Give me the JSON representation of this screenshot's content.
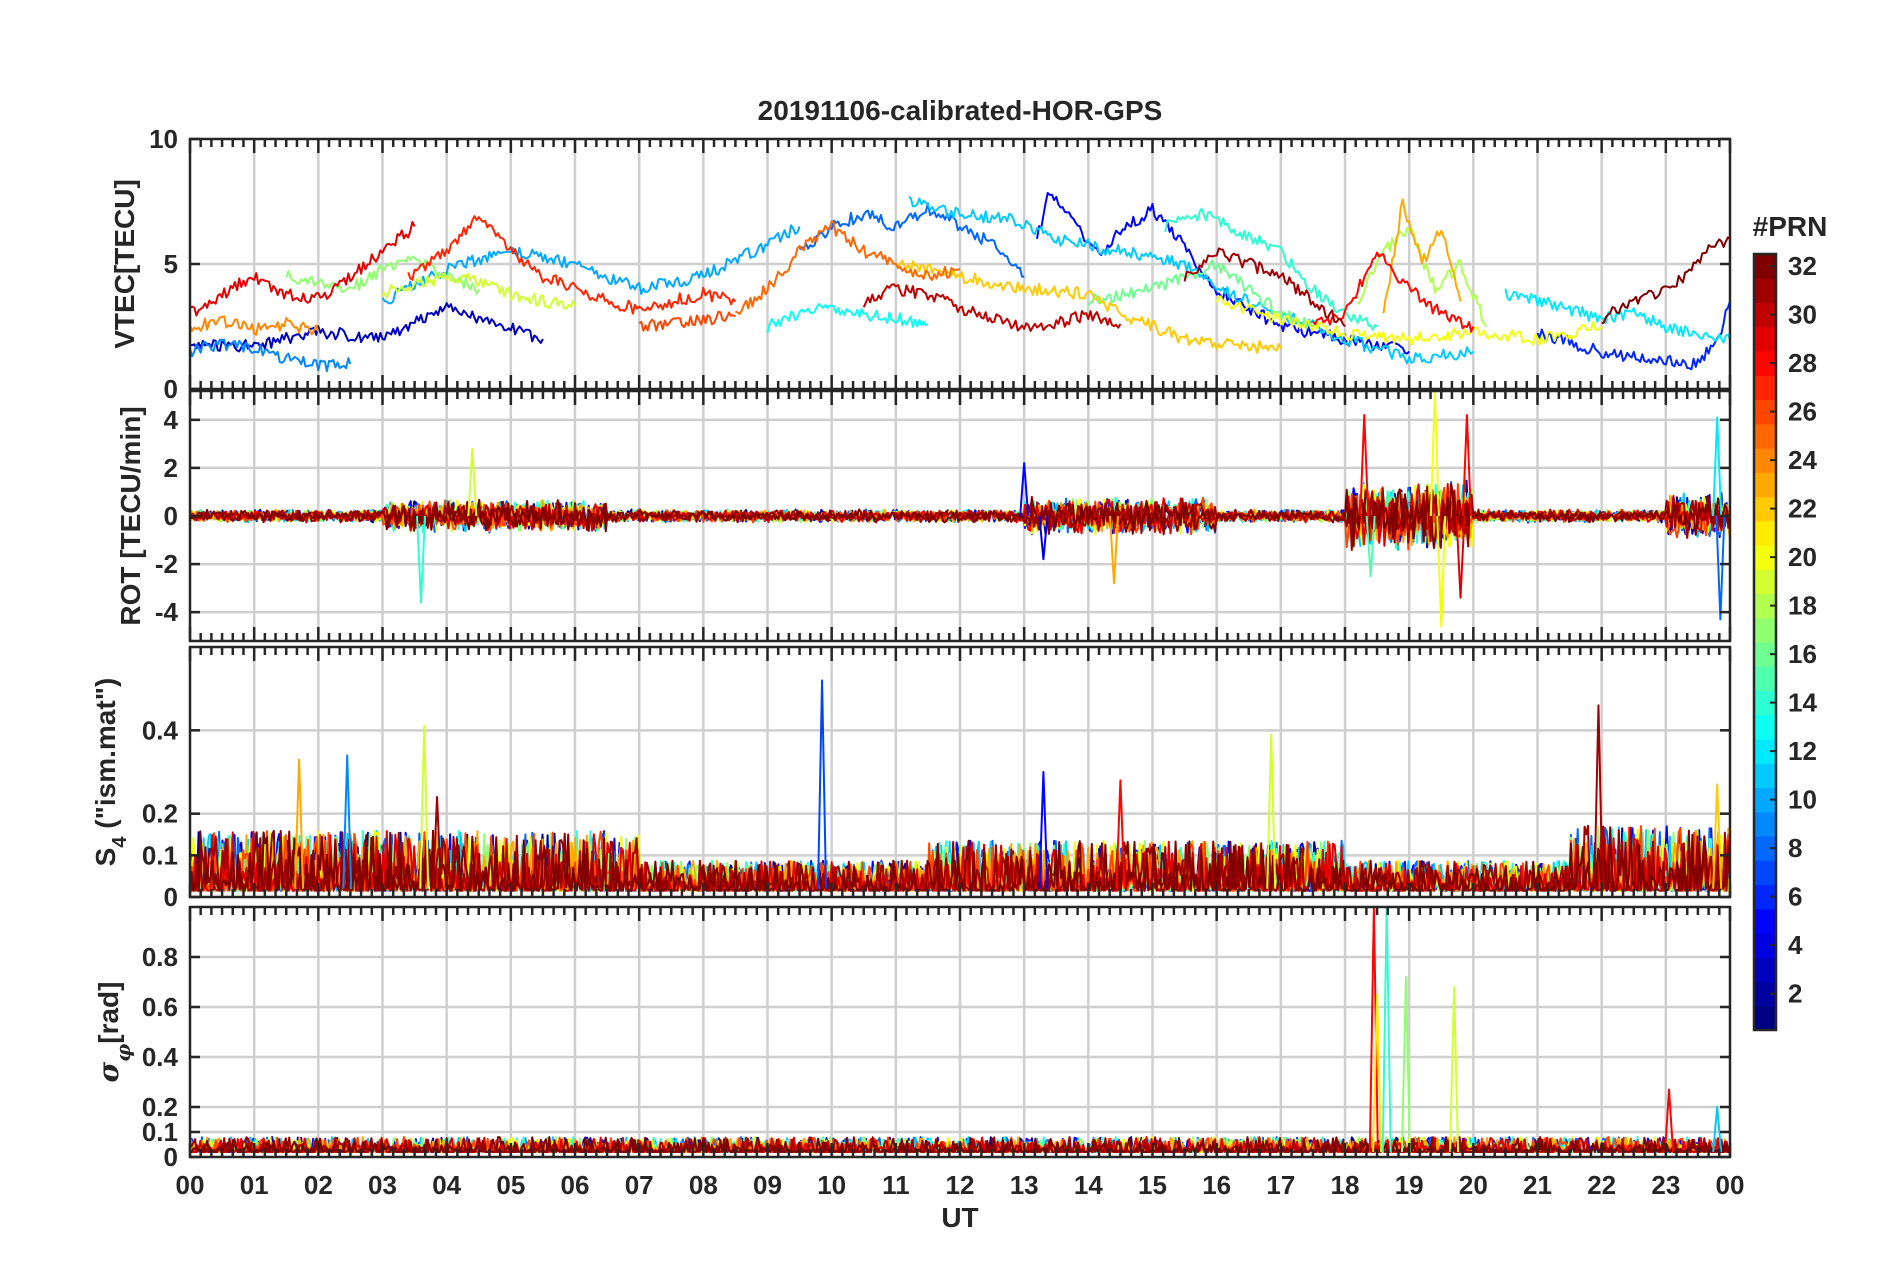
{
  "chart_data": {
    "type": "line",
    "title": "20191106-calibrated-HOR-GPS",
    "xlabel": "UT",
    "x_ticks": [
      "00",
      "01",
      "02",
      "03",
      "04",
      "05",
      "06",
      "07",
      "08",
      "09",
      "10",
      "11",
      "12",
      "13",
      "14",
      "15",
      "16",
      "17",
      "18",
      "19",
      "20",
      "21",
      "22",
      "23",
      "00"
    ],
    "xlim": [
      0,
      24
    ],
    "colorbar": {
      "label": "#PRN",
      "colormap": "jet",
      "range": [
        1,
        32
      ],
      "ticks": [
        "2",
        "4",
        "6",
        "8",
        "10",
        "12",
        "14",
        "16",
        "18",
        "20",
        "22",
        "24",
        "26",
        "28",
        "30",
        "32"
      ]
    },
    "panels": [
      {
        "id": "vtec",
        "ylabel": "VTEC[TECU]",
        "ylim": [
          0,
          10
        ],
        "y_ticks": [
          {
            "v": 0,
            "t": "0"
          },
          {
            "v": 5,
            "t": "5"
          },
          {
            "v": 10,
            "t": "10"
          }
        ],
        "series": [
          {
            "prn": 3,
            "x": [
              0,
              1,
              2,
              3,
              3.5,
              4,
              4.5,
              5,
              5.5
            ],
            "y": [
              1.8,
              1.7,
              2.3,
              2.0,
              2.6,
              3.4,
              2.8,
              2.4,
              2.0
            ]
          },
          {
            "prn": 5,
            "x": [
              13.2,
              13.4,
              13.8,
              14.2,
              14.6,
              15.0,
              15.4,
              16.0,
              17.0,
              18.0,
              19.0
            ],
            "y": [
              6.0,
              8.0,
              6.5,
              5.5,
              6.5,
              7.2,
              6.0,
              4.0,
              2.5,
              2.0,
              1.5
            ]
          },
          {
            "prn": 6,
            "x": [
              21,
              22,
              22.5,
              23,
              23.4,
              23.8,
              24
            ],
            "y": [
              2.2,
              1.5,
              1.3,
              1.2,
              1.0,
              1.8,
              3.5
            ]
          },
          {
            "prn": 8,
            "x": [
              9.5,
              10,
              10.5,
              11,
              11.5,
              12,
              12.5,
              13
            ],
            "y": [
              5.5,
              6.5,
              7.0,
              6.5,
              7.2,
              6.5,
              5.8,
              4.5
            ]
          },
          {
            "prn": 9,
            "x": [
              0,
              0.5,
              1,
              1.5,
              2,
              2.5
            ],
            "y": [
              1.5,
              1.8,
              1.6,
              1.2,
              0.9,
              1.0
            ]
          },
          {
            "prn": 10,
            "x": [
              3.0,
              4.0,
              5.0,
              6.0,
              7.0,
              8.0,
              9.0,
              9.5
            ],
            "y": [
              3.5,
              4.8,
              5.5,
              5.0,
              4.0,
              4.5,
              5.8,
              6.5
            ]
          },
          {
            "prn": 11,
            "x": [
              11.2,
              12,
              12.8,
              13.5,
              14.5,
              15.5,
              16,
              17,
              18,
              19,
              20
            ],
            "y": [
              7.5,
              7.0,
              6.8,
              6.0,
              5.5,
              5.0,
              4.0,
              3.0,
              2.0,
              1.2,
              1.5
            ]
          },
          {
            "prn": 12,
            "x": [
              20.5,
              21,
              21.5,
              22,
              22.5,
              23,
              23.5,
              24
            ],
            "y": [
              3.8,
              3.5,
              3.2,
              2.8,
              3.0,
              2.5,
              2.2,
              2.0
            ]
          },
          {
            "prn": 13,
            "x": [
              9,
              9.5,
              10,
              10.5,
              11,
              11.5
            ],
            "y": [
              2.5,
              3.0,
              3.3,
              3.0,
              2.8,
              2.6
            ]
          },
          {
            "prn": 14,
            "x": [
              15.2,
              15.8,
              16.4,
              17,
              17.5,
              18,
              18.5
            ],
            "y": [
              6.5,
              7.0,
              6.2,
              5.5,
              4.0,
              3.0,
              2.5
            ]
          },
          {
            "prn": 16,
            "x": [
              14,
              15,
              16,
              17,
              17.5
            ],
            "y": [
              3.5,
              4.0,
              5.0,
              3.0,
              2.5
            ]
          },
          {
            "prn": 17,
            "x": [
              1.5,
              2,
              2.5,
              3,
              3.5,
              4,
              4.5
            ],
            "y": [
              4.6,
              4.2,
              4.0,
              4.8,
              5.2,
              4.6,
              4.0
            ]
          },
          {
            "prn": 18,
            "x": [
              18.2,
              18.6,
              19,
              19.4,
              19.8,
              20.2
            ],
            "y": [
              3.5,
              5.5,
              6.5,
              4.0,
              5.0,
              2.5
            ]
          },
          {
            "prn": 19,
            "x": [
              3,
              3.5,
              4,
              4.5,
              5,
              5.5,
              6
            ],
            "y": [
              3.8,
              4.2,
              4.5,
              4.3,
              3.8,
              3.5,
              3.3
            ]
          },
          {
            "prn": 20,
            "x": [
              16,
              17,
              18,
              19,
              20,
              21,
              22
            ],
            "y": [
              3.5,
              2.8,
              2.2,
              2.0,
              2.3,
              2.0,
              2.5
            ]
          },
          {
            "prn": 22,
            "x": [
              11,
              12,
              13,
              14,
              14.5,
              15,
              15.5,
              16,
              17
            ],
            "y": [
              5.0,
              4.5,
              4.0,
              3.8,
              3.0,
              2.5,
              2.0,
              1.8,
              1.6
            ]
          },
          {
            "prn": 23,
            "x": [
              18.6,
              18.9,
              19.2,
              19.5,
              19.8
            ],
            "y": [
              3.0,
              7.5,
              5.0,
              6.5,
              3.5
            ]
          },
          {
            "prn": 24,
            "x": [
              0,
              0.5,
              1,
              1.5,
              2
            ],
            "y": [
              2.5,
              2.7,
              2.4,
              2.6,
              2.3
            ]
          },
          {
            "prn": 25,
            "x": [
              8.5,
              9,
              9.5,
              10,
              10.5,
              11,
              11.5,
              12
            ],
            "y": [
              3.0,
              4.0,
              5.5,
              6.5,
              5.5,
              5.0,
              4.5,
              4.8
            ]
          },
          {
            "prn": 26,
            "x": [
              7,
              7.5,
              8,
              8.5
            ],
            "y": [
              2.5,
              2.6,
              2.8,
              2.9
            ]
          },
          {
            "prn": 27,
            "x": [
              3.4,
              4,
              4.5,
              5,
              5.5,
              6,
              6.5,
              7,
              7.5,
              8,
              8.5
            ],
            "y": [
              4.5,
              5.5,
              7.0,
              5.5,
              4.5,
              4.0,
              3.5,
              3.2,
              3.5,
              3.8,
              3.5
            ]
          },
          {
            "prn": 28,
            "x": [
              17.5,
              18,
              18.5,
              19,
              19.5,
              20
            ],
            "y": [
              2.5,
              3.0,
              5.5,
              4.0,
              3.0,
              2.5
            ]
          },
          {
            "prn": 29,
            "x": [
              0,
              0.5,
              1,
              1.5,
              2,
              2.5,
              3,
              3.5
            ],
            "y": [
              3.0,
              3.8,
              4.5,
              3.8,
              3.6,
              4.5,
              5.5,
              6.5
            ]
          },
          {
            "prn": 30,
            "x": [
              10.5,
              11,
              11.5,
              12,
              12.5,
              13,
              13.5,
              14,
              14.5
            ],
            "y": [
              3.5,
              4.0,
              3.8,
              3.2,
              2.8,
              2.4,
              2.6,
              3.0,
              2.6
            ]
          },
          {
            "prn": 31,
            "x": [
              15.5,
              16,
              16.5,
              17,
              17.5,
              18
            ],
            "y": [
              4.5,
              5.5,
              5.0,
              4.5,
              3.5,
              2.5
            ]
          },
          {
            "prn": 32,
            "x": [
              22,
              22.5,
              23,
              23.3,
              23.6,
              24
            ],
            "y": [
              2.8,
              3.5,
              4.0,
              4.5,
              5.5,
              6.0
            ]
          }
        ]
      },
      {
        "id": "rot",
        "ylabel": "ROT [TECU/min]",
        "ylim": [
          -5.2,
          5.2
        ],
        "y_ticks": [
          {
            "v": -4,
            "t": "-4"
          },
          {
            "v": -2,
            "t": "-2"
          },
          {
            "v": 0,
            "t": "0"
          },
          {
            "v": 2,
            "t": "2"
          },
          {
            "v": 4,
            "t": "4"
          }
        ],
        "spikes": [
          {
            "prn": 14,
            "x": 3.6,
            "y": -3.6
          },
          {
            "prn": 19,
            "x": 4.4,
            "y": 2.8
          },
          {
            "prn": 5,
            "x": 13.0,
            "y": 2.2
          },
          {
            "prn": 4,
            "x": 13.3,
            "y": -1.8
          },
          {
            "prn": 23,
            "x": 14.4,
            "y": -2.8
          },
          {
            "prn": 28,
            "x": 18.3,
            "y": 4.2
          },
          {
            "prn": 15,
            "x": 18.4,
            "y": -2.5
          },
          {
            "prn": 20,
            "x": 19.4,
            "y": 5.2
          },
          {
            "prn": 20,
            "x": 19.5,
            "y": -4.6
          },
          {
            "prn": 28,
            "x": 19.9,
            "y": 4.2
          },
          {
            "prn": 29,
            "x": 19.8,
            "y": -3.4
          },
          {
            "prn": 12,
            "x": 23.8,
            "y": 4.1
          },
          {
            "prn": 8,
            "x": 23.85,
            "y": -4.3
          }
        ]
      },
      {
        "id": "s4",
        "ylabel": "S4 (\"ism.mat\")",
        "ylim": [
          0,
          0.6
        ],
        "y_ticks": [
          {
            "v": 0,
            "t": "0"
          },
          {
            "v": 0.1,
            "t": "0.1"
          },
          {
            "v": 0.2,
            "t": "0.2"
          },
          {
            "v": 0.4,
            "t": "0.4"
          }
        ],
        "spikes": [
          {
            "prn": 23,
            "x": 1.7,
            "y": 0.33
          },
          {
            "prn": 9,
            "x": 2.45,
            "y": 0.34
          },
          {
            "prn": 19,
            "x": 3.65,
            "y": 0.41
          },
          {
            "prn": 31,
            "x": 3.85,
            "y": 0.24
          },
          {
            "prn": 7,
            "x": 9.85,
            "y": 0.52
          },
          {
            "prn": 5,
            "x": 13.3,
            "y": 0.3
          },
          {
            "prn": 28,
            "x": 14.5,
            "y": 0.28
          },
          {
            "prn": 19,
            "x": 16.85,
            "y": 0.39
          },
          {
            "prn": 31,
            "x": 21.95,
            "y": 0.46
          },
          {
            "prn": 22,
            "x": 23.8,
            "y": 0.27
          }
        ]
      },
      {
        "id": "sigma",
        "ylabel": "σφ[rad]",
        "ylim": [
          0,
          1.0
        ],
        "y_ticks": [
          {
            "v": 0,
            "t": "0"
          },
          {
            "v": 0.1,
            "t": "0.1"
          },
          {
            "v": 0.2,
            "t": "0.2"
          },
          {
            "v": 0.4,
            "t": "0.4"
          },
          {
            "v": 0.6,
            "t": "0.6"
          },
          {
            "v": 0.8,
            "t": "0.8"
          }
        ],
        "spikes": [
          {
            "prn": 28,
            "x": 18.45,
            "y": 1.0
          },
          {
            "prn": 21,
            "x": 18.5,
            "y": 0.65
          },
          {
            "prn": 14,
            "x": 18.65,
            "y": 1.0
          },
          {
            "prn": 17,
            "x": 18.95,
            "y": 0.72
          },
          {
            "prn": 19,
            "x": 19.7,
            "y": 0.68
          },
          {
            "prn": 28,
            "x": 23.05,
            "y": 0.27
          },
          {
            "prn": 11,
            "x": 23.8,
            "y": 0.2
          }
        ]
      }
    ]
  }
}
